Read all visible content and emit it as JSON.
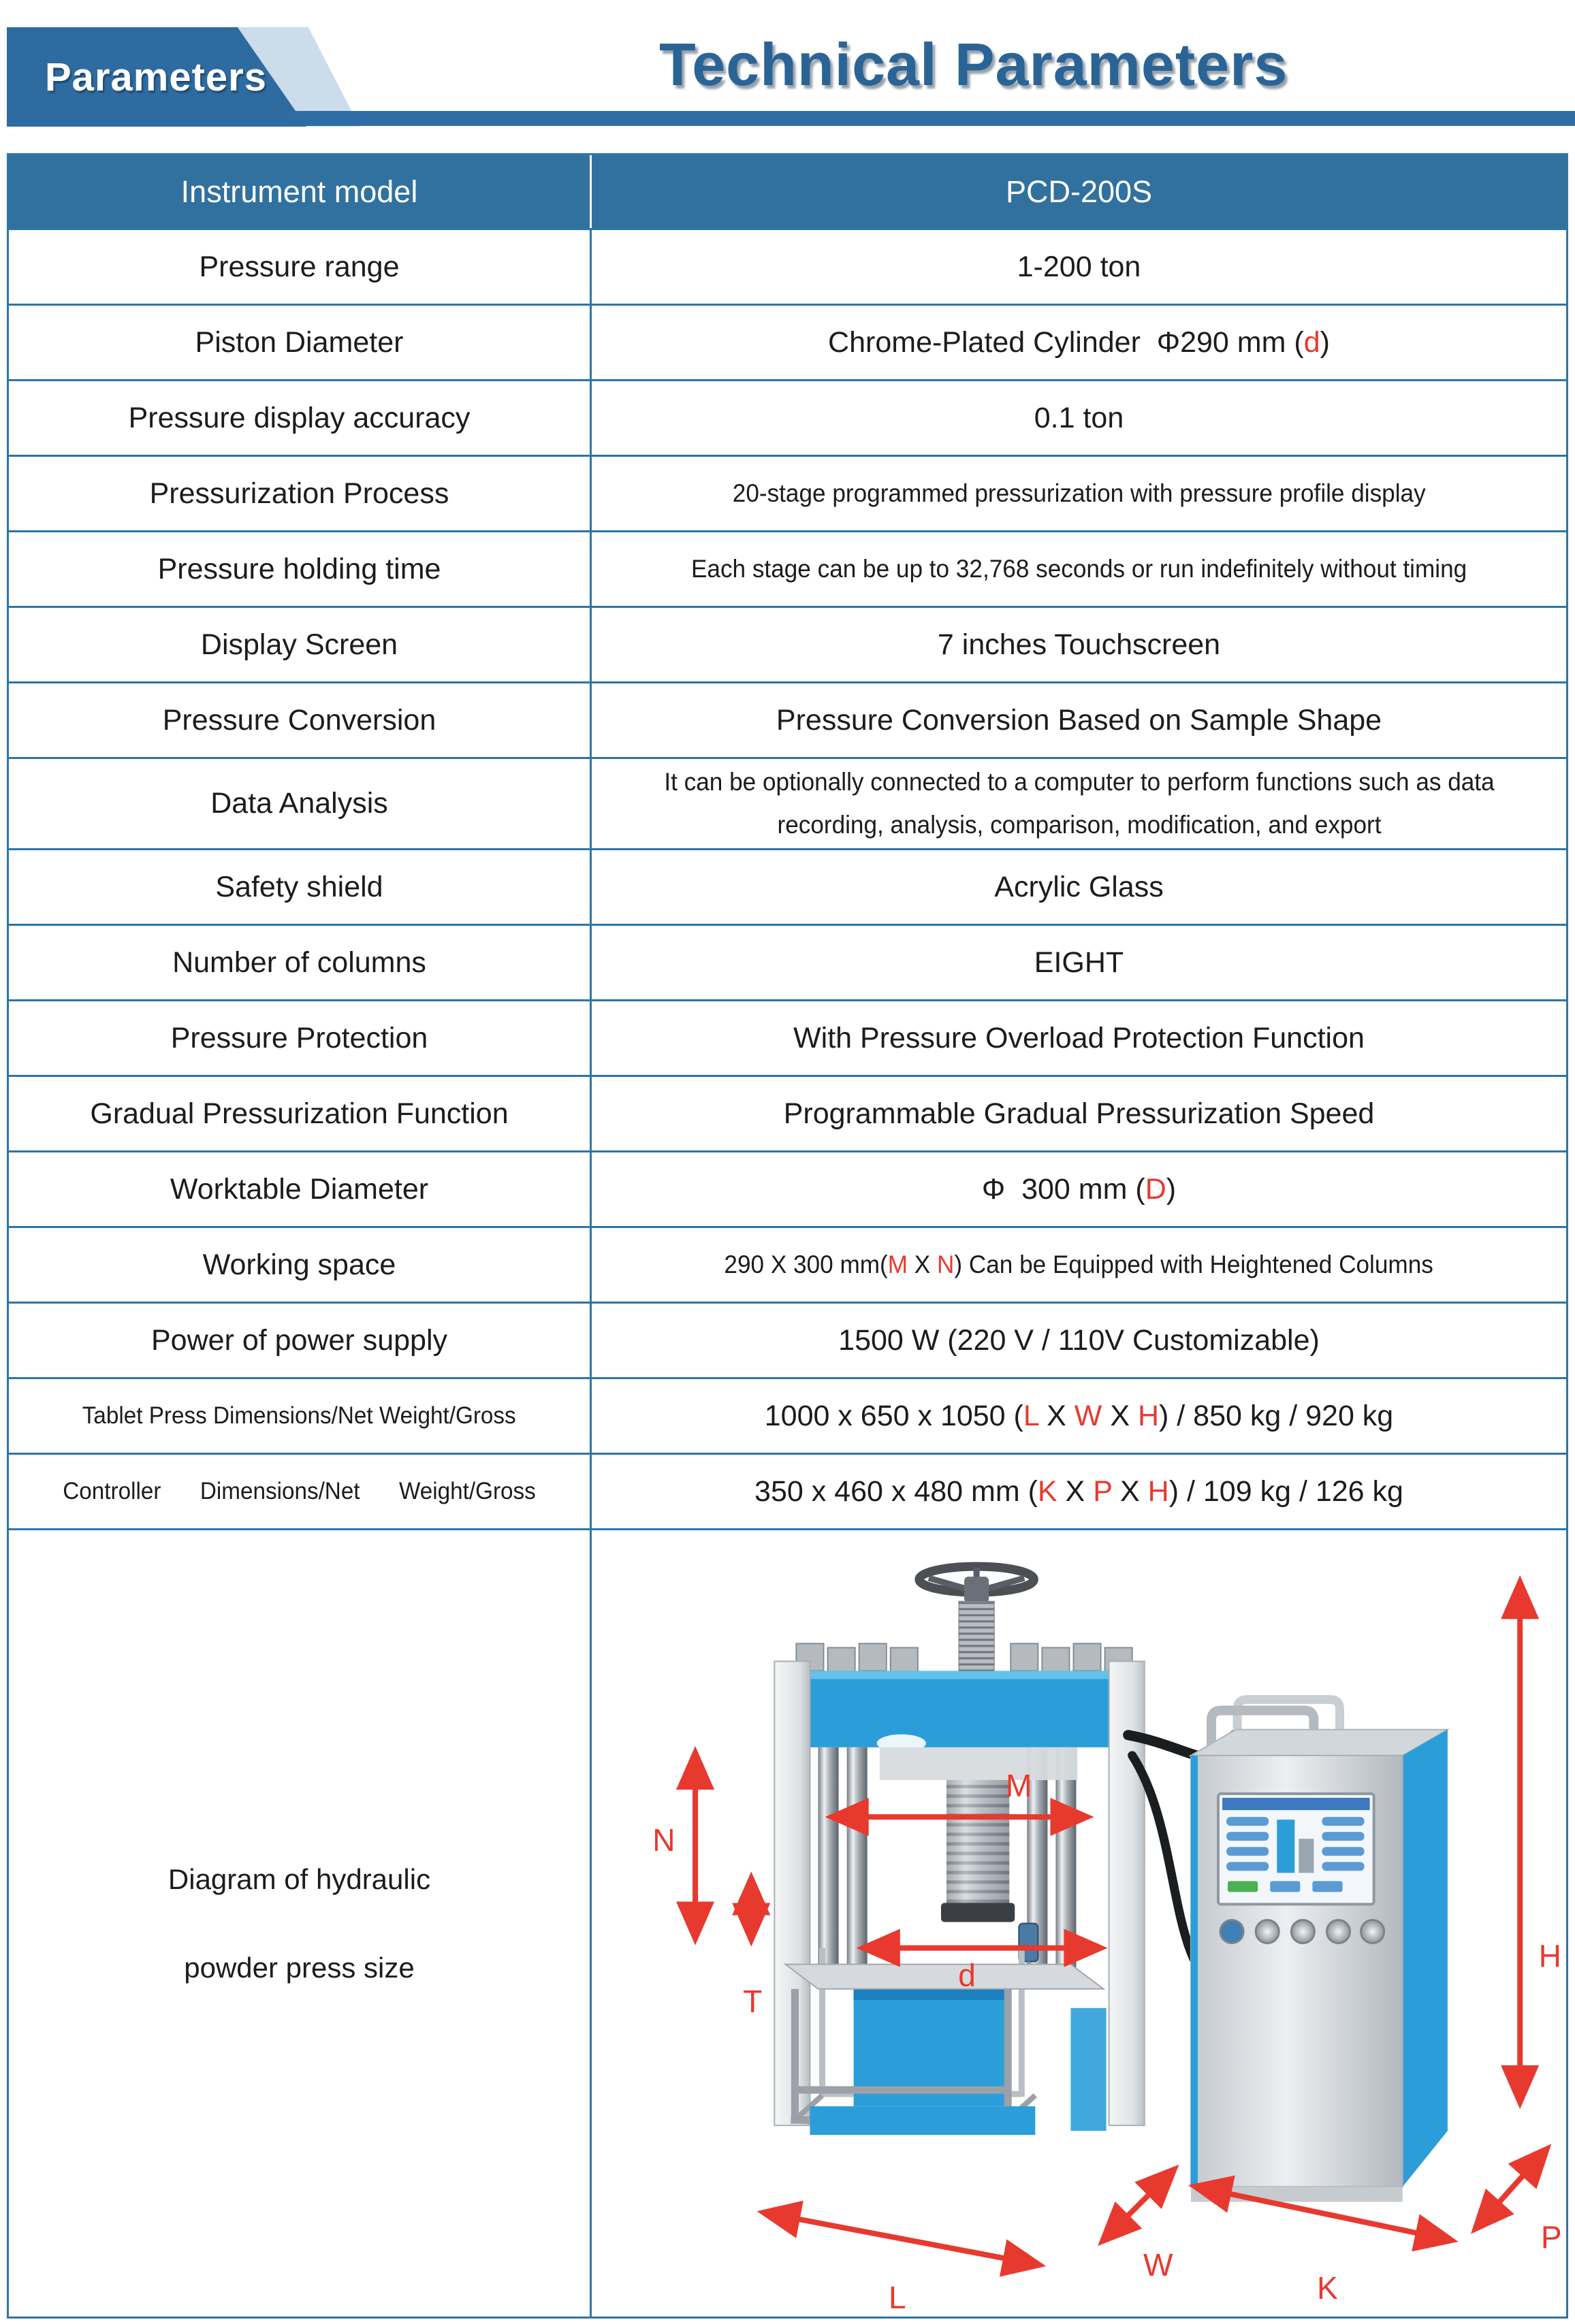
{
  "colors": {
    "accent_red": "#e8392f",
    "table_blue": "#2e74a8",
    "header_bg": "#31719f",
    "tab_blue": "#2d6ba1",
    "bar_blue": "#2e6da4",
    "light_blue": "#ccdcea",
    "title_blue": "#2a6496",
    "machine_blue": "#2b9ed9"
  },
  "header": {
    "tab_label": "Parameters",
    "title": "Technical Parameters"
  },
  "table": {
    "header_row": {
      "label": "Instrument model",
      "value": "PCD-200S"
    },
    "rows": [
      {
        "label": "Pressure range",
        "value": [
          {
            "t": "1-200 ton"
          }
        ]
      },
      {
        "label": "Piston Diameter",
        "value": [
          {
            "t": "Chrome-Plated Cylinder  Φ290 mm ("
          },
          {
            "t": "d",
            "c": "red"
          },
          {
            "t": ")"
          }
        ]
      },
      {
        "label": "Pressure display accuracy",
        "value": [
          {
            "t": "0.1 ton"
          }
        ]
      },
      {
        "label": "Pressurization Process",
        "value": [
          {
            "t": "20-stage programmed pressurization with pressure profile display"
          }
        ]
      },
      {
        "label": "Pressure holding time",
        "value": [
          {
            "t": "Each stage can be up to 32,768 seconds or run indefinitely without timing"
          }
        ]
      },
      {
        "label": "Display Screen",
        "value": [
          {
            "t": "7 inches Touchscreen"
          }
        ]
      },
      {
        "label": "Pressure Conversion",
        "value": [
          {
            "t": "Pressure Conversion Based on Sample Shape"
          }
        ]
      },
      {
        "label": "Data Analysis",
        "value": [
          {
            "t": "It can be optionally connected to a computer to perform functions such as data recording, analysis, comparison, modification, and export"
          }
        ]
      },
      {
        "label": "Safety shield",
        "value": [
          {
            "t": "Acrylic Glass"
          }
        ]
      },
      {
        "label": "Number of columns",
        "value": [
          {
            "t": "EIGHT"
          }
        ]
      },
      {
        "label": "Pressure Protection",
        "value": [
          {
            "t": "With Pressure Overload Protection Function"
          }
        ]
      },
      {
        "label": "Gradual Pressurization Function",
        "value": [
          {
            "t": "Programmable Gradual Pressurization Speed"
          }
        ]
      },
      {
        "label": "Worktable Diameter",
        "value": [
          {
            "t": "Φ  300 mm ("
          },
          {
            "t": "D",
            "c": "red"
          },
          {
            "t": ")"
          }
        ]
      },
      {
        "label": "Working space",
        "value": [
          {
            "t": "290 X 300 mm("
          },
          {
            "t": "M",
            "c": "red"
          },
          {
            "t": " X "
          },
          {
            "t": "N",
            "c": "red"
          },
          {
            "t": ") Can be Equipped with Heightened Columns"
          }
        ]
      },
      {
        "label": "Power of power supply",
        "value": [
          {
            "t": "1500 W (220 V / 110V Customizable)"
          }
        ]
      },
      {
        "label": "Tablet Press Dimensions/Net Weight/Gross",
        "value": [
          {
            "t": "1000 x 650 x 1050 ("
          },
          {
            "t": "L",
            "c": "red"
          },
          {
            "t": " X "
          },
          {
            "t": "W",
            "c": "red"
          },
          {
            "t": " X "
          },
          {
            "t": "H",
            "c": "red"
          },
          {
            "t": ") / 850 kg / 920 kg"
          }
        ]
      },
      {
        "label": "Controller Dimensions/Net Weight/Gross",
        "value": [
          {
            "t": "350 x 460 x 480 mm ("
          },
          {
            "t": "K",
            "c": "red"
          },
          {
            "t": " X "
          },
          {
            "t": "P",
            "c": "red"
          },
          {
            "t": " X "
          },
          {
            "t": "H",
            "c": "red"
          },
          {
            "t": ") / 109 kg / 126 kg"
          }
        ]
      }
    ],
    "diagram_row": {
      "label_line1": "Diagram of hydraulic",
      "label_line2": "powder press size"
    }
  },
  "diagram": {
    "labels": {
      "n": "N",
      "t": "T",
      "m": "M",
      "d": "d",
      "h": "H",
      "w": "W",
      "l": "L",
      "k": "K",
      "p": "P"
    }
  }
}
